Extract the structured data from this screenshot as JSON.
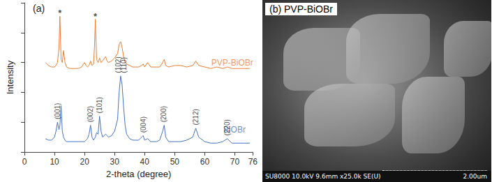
{
  "chart_data": {
    "type": "line",
    "title": "(a)",
    "x_label": "2-theta (degree)",
    "y_label": "Intensity",
    "x": [
      7,
      8,
      9,
      10,
      10.5,
      11,
      11.5,
      11.8,
      12.2,
      12.6,
      13,
      13.5,
      14,
      15,
      16,
      17,
      18,
      19,
      20,
      20.5,
      21,
      21.5,
      22,
      22.5,
      23,
      23.3,
      23.6,
      24,
      24.5,
      25,
      25.5,
      26,
      27,
      27.5,
      28,
      29,
      30,
      31,
      31.5,
      32,
      32.5,
      33,
      33.5,
      34,
      35,
      36,
      37,
      38,
      39,
      39.5,
      40,
      41,
      42,
      43,
      44,
      45,
      46,
      46.5,
      47,
      48,
      50,
      52,
      54,
      56,
      57,
      58,
      60,
      62,
      64,
      66,
      67.5,
      69,
      71,
      73,
      75
    ],
    "series": [
      {
        "name": "PVP-BiOBr",
        "color": "#ed7d31",
        "label_at": [
          61,
          60
        ],
        "values": [
          60,
          58,
          57,
          57,
          58,
          60,
          70,
          91,
          62,
          60,
          68,
          60,
          57,
          56,
          56,
          56,
          56,
          57,
          60,
          58,
          57,
          58,
          61,
          58,
          59,
          70,
          89,
          62,
          60,
          63,
          60,
          61,
          64,
          61,
          60,
          61,
          63,
          66,
          72,
          74,
          70,
          64,
          60,
          59,
          58,
          57,
          57,
          57,
          58,
          59,
          57,
          60,
          57,
          57,
          57,
          57,
          60,
          62,
          58,
          57,
          58,
          58,
          57,
          58,
          61,
          58,
          57,
          56,
          57,
          56,
          57,
          56,
          56,
          56,
          56
        ]
      },
      {
        "name": "BiOBr",
        "color": "#4472c4",
        "label_at": [
          65,
          15
        ],
        "values": [
          9,
          8,
          8,
          10,
          14,
          20,
          15,
          18,
          31,
          14,
          10,
          8,
          7,
          7,
          7,
          7,
          7,
          7,
          7,
          8,
          9,
          12,
          18,
          10,
          8,
          9,
          10,
          13,
          12,
          24,
          14,
          10,
          12,
          11,
          10,
          11,
          14,
          22,
          40,
          51,
          45,
          30,
          18,
          12,
          9,
          8,
          8,
          8,
          10,
          11,
          8,
          9,
          7,
          7,
          7,
          8,
          14,
          18,
          10,
          7,
          7,
          7,
          8,
          10,
          16,
          10,
          7,
          6,
          6,
          7,
          9,
          6,
          6,
          6,
          6
        ]
      }
    ],
    "peak_labels": [
      {
        "text": "(001)",
        "x": 11,
        "y": 22
      },
      {
        "text": "(002)",
        "x": 22,
        "y": 20
      },
      {
        "text": "(101)",
        "x": 25,
        "y": 26
      },
      {
        "text": "(102)",
        "x": 31.3,
        "y": 53
      },
      {
        "text": "(110)",
        "x": 33,
        "y": 53
      },
      {
        "text": "(004)",
        "x": 39.5,
        "y": 13
      },
      {
        "text": "(200)",
        "x": 46.3,
        "y": 20
      },
      {
        "text": "(212)",
        "x": 57,
        "y": 18
      },
      {
        "text": "(220)",
        "x": 67.5,
        "y": 11
      }
    ],
    "markers": [
      {
        "text": "*",
        "x": 11.8,
        "y": 93
      },
      {
        "text": "*",
        "x": 23.6,
        "y": 91
      }
    ],
    "xlim": [
      0,
      76
    ],
    "xticks": [
      0,
      10,
      20,
      30,
      40,
      50,
      60,
      70
    ],
    "ylim": [
      0,
      100
    ],
    "yticks": [
      0,
      20,
      40,
      60,
      80,
      100
    ],
    "tick_labels": "x",
    "grid": false
  },
  "image_panel": {
    "label": "(b) PVP-BiOBr",
    "caption": "SU8000 10.0kV 9.6mm x25.0k SE(U)",
    "scale_bar": "2.00um"
  }
}
